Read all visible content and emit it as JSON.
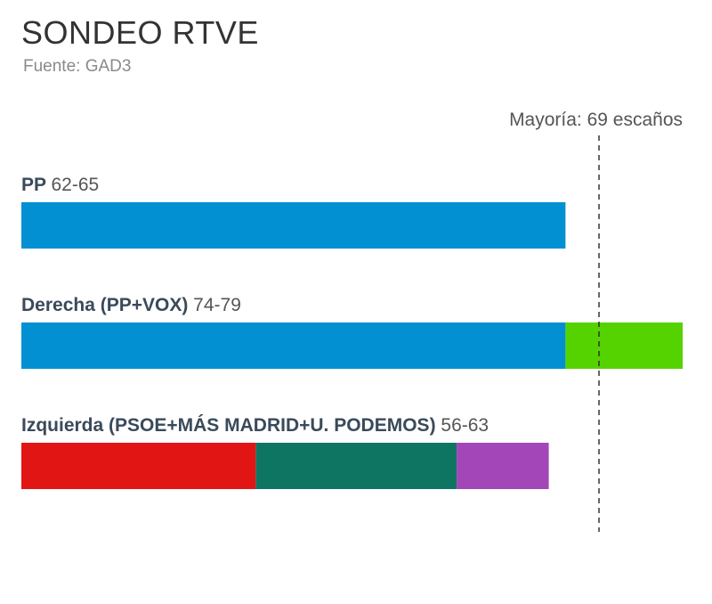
{
  "chart_data": {
    "type": "bar",
    "title": "SONDEO RTVE",
    "subtitle": "Fuente: GAD3",
    "majority_label": "Mayoría: 69 escaños",
    "majority_value": 69,
    "xlim": [
      0,
      82.5
    ],
    "groups": [
      {
        "name": "PP",
        "range": "62-65",
        "segments": [
          {
            "party": "PP",
            "value": 65,
            "color": "#0390d3"
          }
        ]
      },
      {
        "name": "Derecha (PP+VOX)",
        "range": "74-79",
        "segments": [
          {
            "party": "PP",
            "value": 65,
            "color": "#0390d3"
          },
          {
            "party": "VOX",
            "value": 14,
            "color": "#55d300"
          }
        ]
      },
      {
        "name": "Izquierda (PSOE+MÁS MADRID+U. PODEMOS)",
        "range": "56-63",
        "segments": [
          {
            "party": "PSOE",
            "value": 28,
            "color": "#e21515"
          },
          {
            "party": "MÁS MADRID",
            "value": 24,
            "color": "#0f7563"
          },
          {
            "party": "U. PODEMOS",
            "value": 11,
            "color": "#a246b8"
          }
        ]
      }
    ]
  }
}
